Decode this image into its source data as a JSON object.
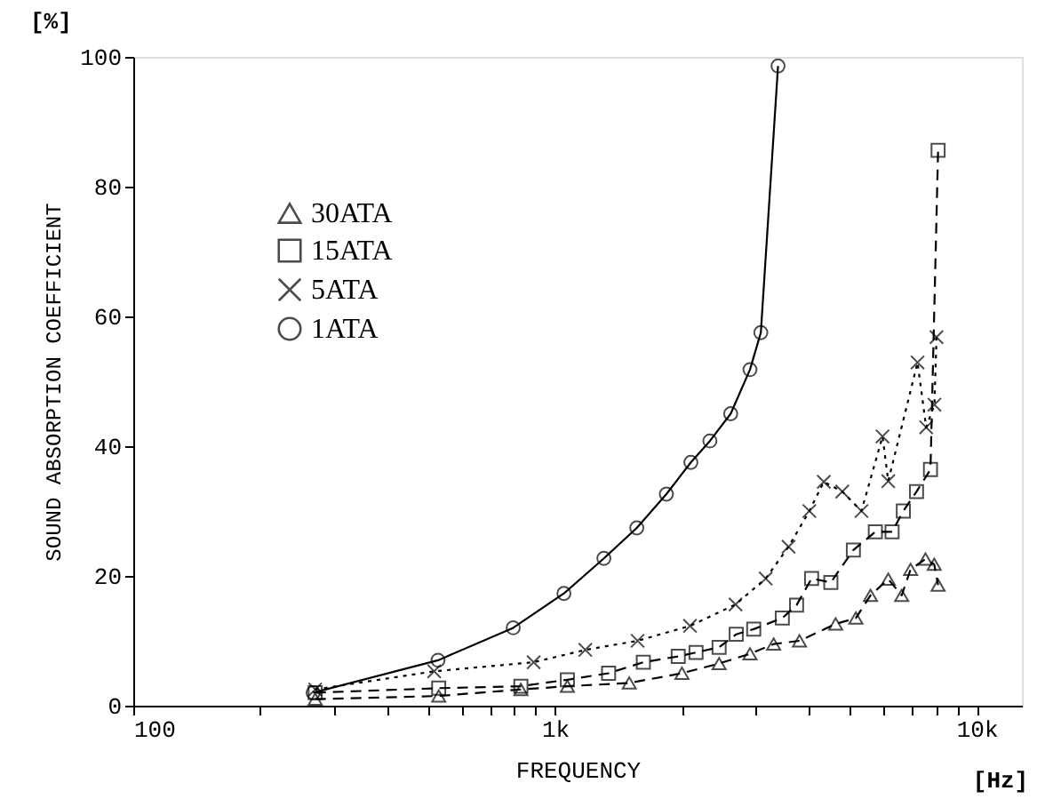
{
  "chart_data": {
    "type": "line",
    "xlabel": "FREQUENCY",
    "ylabel": "SOUND ABSORPTION COEFFICIENT",
    "annotations": [
      "[%]",
      "[Hz]"
    ],
    "log": "x",
    "xlim": [
      100,
      12800
    ],
    "ylim": [
      0,
      100
    ],
    "xticks": [
      {
        "value": 100,
        "label": "100"
      },
      {
        "value": 200,
        "label": null
      },
      {
        "value": 300,
        "label": null
      },
      {
        "value": 400,
        "label": null
      },
      {
        "value": 500,
        "label": null
      },
      {
        "value": 600,
        "label": null
      },
      {
        "value": 700,
        "label": null
      },
      {
        "value": 800,
        "label": null
      },
      {
        "value": 900,
        "label": null
      },
      {
        "value": 1000,
        "label": "1k"
      },
      {
        "value": 2000,
        "label": null
      },
      {
        "value": 3000,
        "label": null
      },
      {
        "value": 4000,
        "label": null
      },
      {
        "value": 5000,
        "label": null
      },
      {
        "value": 6000,
        "label": null
      },
      {
        "value": 7000,
        "label": null
      },
      {
        "value": 8000,
        "label": null
      },
      {
        "value": 9000,
        "label": null
      },
      {
        "value": 10000,
        "label": "10k"
      }
    ],
    "yticks": [
      0,
      20,
      40,
      60,
      80,
      100
    ],
    "legend": "top left",
    "series": [
      {
        "name": "30ATA",
        "color": "#000000",
        "marker": "triangle",
        "line_style": "dashed",
        "x": [
          270,
          530,
          830,
          1070,
          1500,
          2000,
          2450,
          2900,
          3300,
          3800,
          4630,
          5170,
          5600,
          6170,
          6640,
          6970,
          7560,
          7930,
          8100
        ],
        "values": [
          1,
          1.5,
          2.5,
          3,
          3.5,
          5,
          6.5,
          8,
          9.5,
          10,
          12.6,
          13.5,
          17,
          19.5,
          17,
          21,
          22.6,
          21.8,
          18.6
        ]
      },
      {
        "name": "15ATA",
        "color": "#000000",
        "marker": "square",
        "line_style": "dashed",
        "x": [
          270,
          530,
          830,
          1070,
          1340,
          1620,
          1960,
          2160,
          2450,
          2690,
          2960,
          3460,
          3740,
          4060,
          4510,
          5100,
          5750,
          6300,
          6700,
          7200,
          7770,
          8100
        ],
        "values": [
          2,
          2.7,
          3,
          4,
          5,
          6.7,
          7.6,
          8.2,
          9,
          11,
          11.8,
          13.5,
          15.5,
          19.6,
          19,
          24,
          26.8,
          26.8,
          30,
          33,
          36.4,
          85.6
        ]
      },
      {
        "name": "5ATA",
        "color": "#000000",
        "marker": "cross",
        "line_style": "dotted",
        "x": [
          270,
          517,
          890,
          1180,
          1570,
          2090,
          2680,
          3160,
          3580,
          4010,
          4340,
          4800,
          5330,
          5980,
          6170,
          7240,
          7590,
          7940,
          8030
        ],
        "values": [
          2.5,
          5.3,
          6.7,
          8.6,
          10,
          12.3,
          15.6,
          19.6,
          24.5,
          30,
          34.5,
          33,
          30,
          41.5,
          34.6,
          52.9,
          42.9,
          46.4,
          56.8
        ]
      },
      {
        "name": "1ATA",
        "color": "#000000",
        "marker": "circle",
        "line_style": "solid",
        "x": [
          267,
          528,
          796,
          1050,
          1306,
          1563,
          1837,
          2100,
          2330,
          2610,
          2900,
          3077,
          3380
        ],
        "values": [
          2,
          7,
          12,
          17.3,
          22.7,
          27.4,
          32.6,
          37.5,
          40.8,
          45,
          51.8,
          57.5,
          98.6
        ]
      }
    ]
  }
}
